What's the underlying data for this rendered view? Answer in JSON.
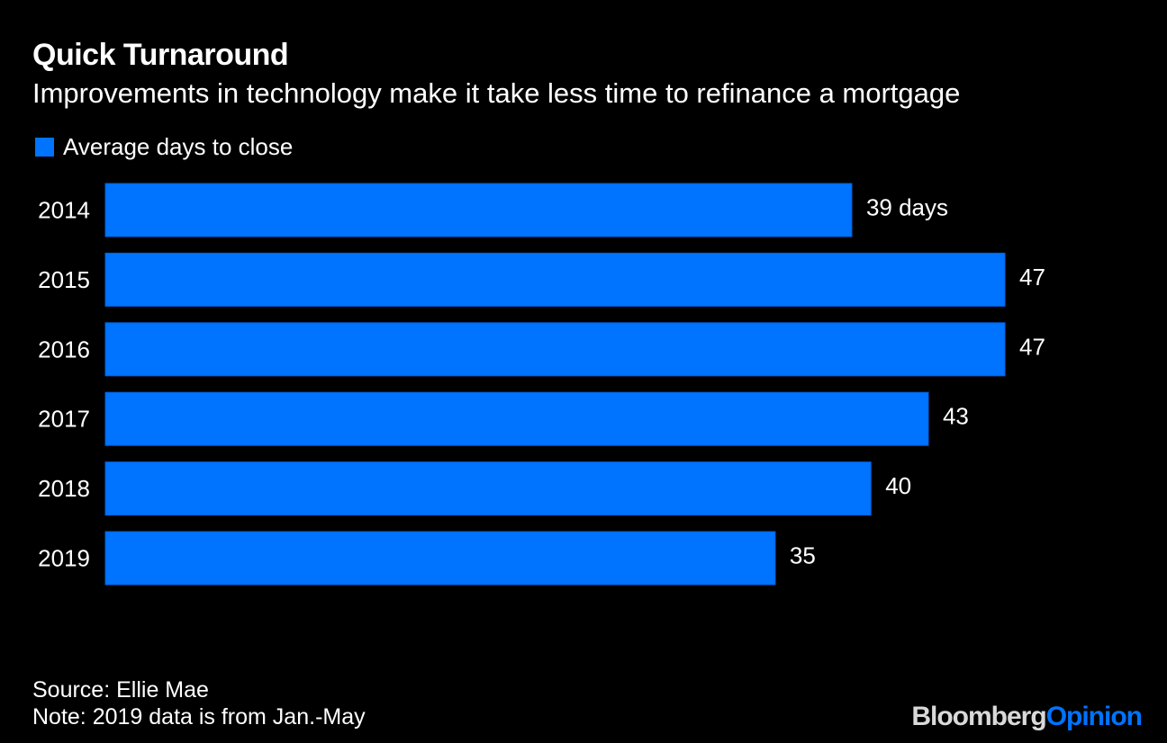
{
  "title": "Quick Turnaround",
  "subtitle": "Improvements in technology make it take less time to refinance a mortgage",
  "source": "Source: Ellie Mae",
  "note": "Note: 2019 data is from Jan.-May",
  "logo": {
    "part1": "Bloomberg",
    "part2": "Opinion"
  },
  "colors": {
    "bar": "#0073FF",
    "background": "#000000",
    "text": "#FFFFFF"
  },
  "chart_data": {
    "type": "bar",
    "orientation": "horizontal",
    "categories": [
      "2014",
      "2015",
      "2016",
      "2017",
      "2018",
      "2019"
    ],
    "series": [
      {
        "name": "Average days to close",
        "values": [
          39,
          47,
          47,
          43,
          40,
          35
        ]
      }
    ],
    "data_labels": [
      "39 days",
      "47",
      "47",
      "43",
      "40",
      "35"
    ],
    "xlim": [
      0,
      47
    ],
    "grid": false,
    "legend": "top-left"
  }
}
